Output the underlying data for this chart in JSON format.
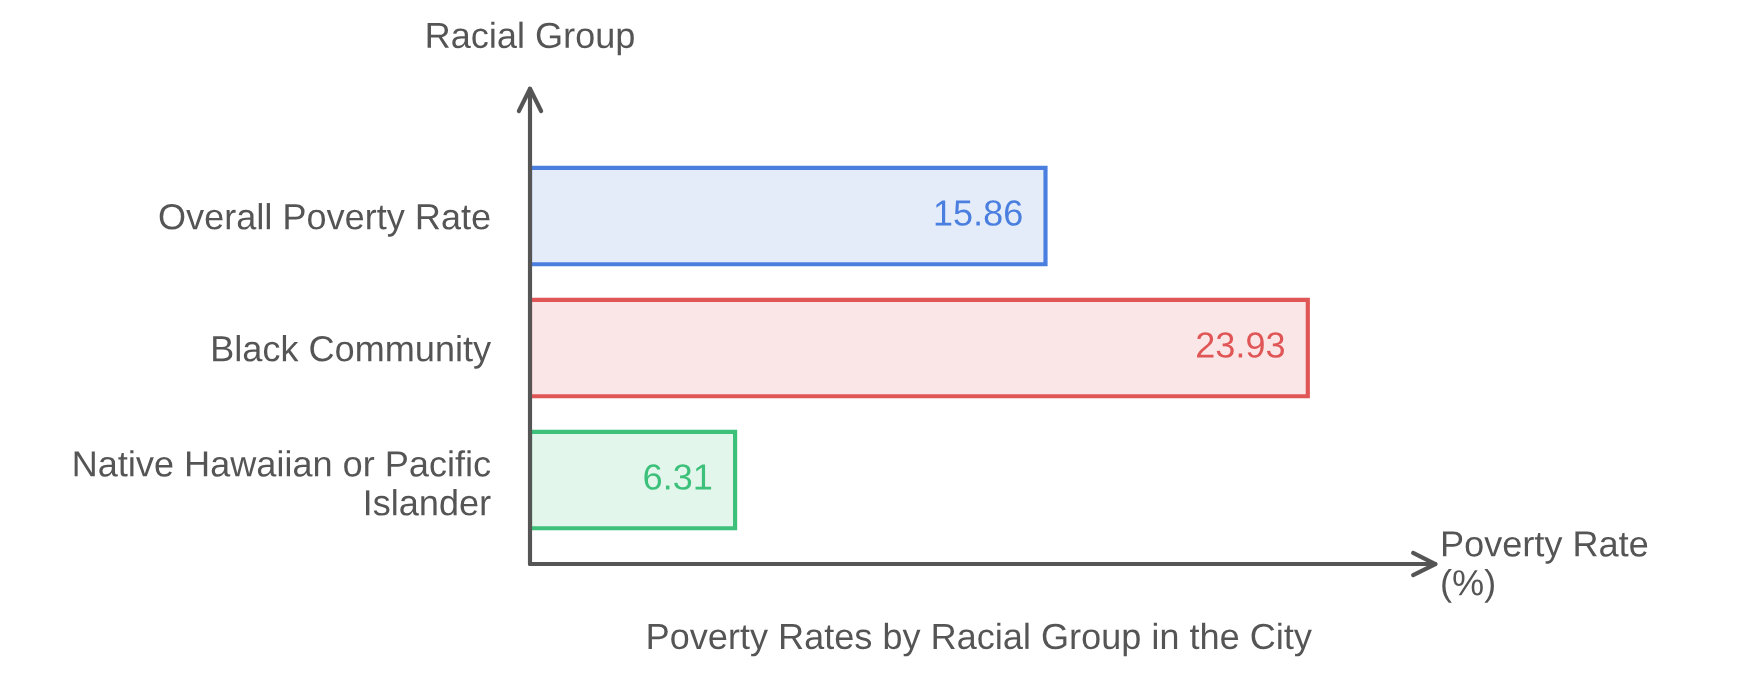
{
  "chart_data": {
    "type": "bar",
    "orientation": "horizontal",
    "title": "Poverty Rates by Racial Group in the City",
    "xlabel": "Poverty Rate\n(%)",
    "ylabel": "Racial Group",
    "categories": [
      "Overall Poverty Rate",
      "Black Community",
      "Native Hawaiian or Pacific Islander"
    ],
    "values": [
      15.86,
      23.93,
      6.31
    ],
    "colors": [
      "#4a7fe0",
      "#e05555",
      "#3cc07a"
    ],
    "data_labels": true,
    "grid": false,
    "legend": false
  }
}
